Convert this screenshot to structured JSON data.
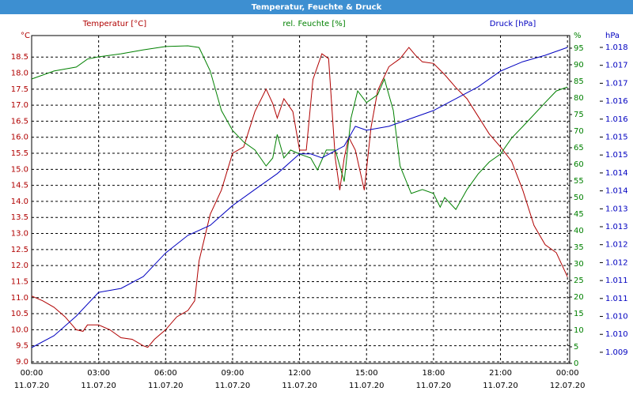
{
  "chart_data": {
    "type": "line",
    "title": "Temperatur, Feuchte & Druck",
    "y_unit": "°C",
    "y2_unit": "%",
    "y3_unit": "hPa",
    "xlim": [
      0,
      24.1
    ],
    "xticks": [
      {
        "value": 0,
        "label": "00:00"
      },
      {
        "value": 3,
        "label": "03:00"
      },
      {
        "value": 6,
        "label": "06:00"
      },
      {
        "value": 9,
        "label": "09:00"
      },
      {
        "value": 12,
        "label": "12:00"
      },
      {
        "value": 15,
        "label": "15:00"
      },
      {
        "value": 18,
        "label": "18:00"
      },
      {
        "value": 21,
        "label": "21:00"
      },
      {
        "value": 24,
        "label": "00:00"
      }
    ],
    "xtick_dates": [
      "11.07.20",
      "11.07.20",
      "11.07.20",
      "11.07.20",
      "11.07.20",
      "11.07.20",
      "11.07.20",
      "11.07.20",
      "12.07.20"
    ],
    "ylim": [
      8.95,
      19.17
    ],
    "yticks": [
      {
        "value": 9.0,
        "label": "9.0"
      },
      {
        "value": 9.5,
        "label": "9.5"
      },
      {
        "value": 10.0,
        "label": "10.0"
      },
      {
        "value": 10.5,
        "label": "10.5"
      },
      {
        "value": 11.0,
        "label": "11.0"
      },
      {
        "value": 11.5,
        "label": "11.5"
      },
      {
        "value": 12.0,
        "label": "12.0"
      },
      {
        "value": 12.5,
        "label": "12.5"
      },
      {
        "value": 13.0,
        "label": "13.0"
      },
      {
        "value": 13.5,
        "label": "13.5"
      },
      {
        "value": 14.0,
        "label": "14.0"
      },
      {
        "value": 14.5,
        "label": "14.5"
      },
      {
        "value": 15.0,
        "label": "15.0"
      },
      {
        "value": 15.5,
        "label": "15.5"
      },
      {
        "value": 16.0,
        "label": "16.0"
      },
      {
        "value": 16.5,
        "label": "16.5"
      },
      {
        "value": 17.0,
        "label": "17.0"
      },
      {
        "value": 17.5,
        "label": "17.5"
      },
      {
        "value": 18.0,
        "label": "18.0"
      },
      {
        "value": 18.5,
        "label": "18.5"
      }
    ],
    "y2lim": [
      0,
      98.8
    ],
    "y2ticks": [
      0,
      5,
      10,
      15,
      20,
      25,
      30,
      35,
      40,
      45,
      50,
      55,
      60,
      65,
      70,
      75,
      80,
      85,
      90,
      95
    ],
    "y3lim": [
      1.00919,
      1.01833
    ],
    "y3ticks": [
      {
        "value": 1.018,
        "label": "1.018"
      },
      {
        "value": 1.0175,
        "label": "1.017"
      },
      {
        "value": 1.017,
        "label": "1.017"
      },
      {
        "value": 1.0165,
        "label": "1.016"
      },
      {
        "value": 1.016,
        "label": "1.016"
      },
      {
        "value": 1.0155,
        "label": "1.015"
      },
      {
        "value": 1.015,
        "label": "1.015"
      },
      {
        "value": 1.0145,
        "label": "1.014"
      },
      {
        "value": 1.014,
        "label": "1.014"
      },
      {
        "value": 1.0135,
        "label": "1.013"
      },
      {
        "value": 1.013,
        "label": "1.013"
      },
      {
        "value": 1.0125,
        "label": "1.012"
      },
      {
        "value": 1.012,
        "label": "1.012"
      },
      {
        "value": 1.0115,
        "label": "1.011"
      },
      {
        "value": 1.011,
        "label": "1.011"
      },
      {
        "value": 1.0105,
        "label": "1.010"
      },
      {
        "value": 1.01,
        "label": "1.010"
      },
      {
        "value": 1.0095,
        "label": "1.009"
      }
    ],
    "grid": true,
    "series": [
      {
        "name": "Temperatur [°C]",
        "color": "#b00000",
        "axis": "y",
        "x": [
          0,
          0.5,
          1,
          1.5,
          2,
          2.3,
          2.5,
          3,
          3.5,
          4,
          4.5,
          5,
          5.2,
          5.5,
          6,
          6.5,
          7,
          7.3,
          7.5,
          8,
          8.5,
          9,
          9.5,
          10,
          10.5,
          10.8,
          11,
          11.3,
          11.7,
          12,
          12.3,
          12.6,
          13,
          13.3,
          13.6,
          13.8,
          14,
          14.2,
          14.5,
          14.9,
          15.2,
          15.5,
          16,
          16.5,
          16.9,
          17.2,
          17.5,
          18,
          18.5,
          19,
          19.5,
          20,
          20.5,
          21,
          21.5,
          22,
          22.5,
          23,
          23.5,
          24
        ],
        "values": [
          11.05,
          10.9,
          10.7,
          10.4,
          10.0,
          9.95,
          10.15,
          10.15,
          10.0,
          9.75,
          9.7,
          9.5,
          9.45,
          9.7,
          10.0,
          10.4,
          10.6,
          10.9,
          12.15,
          13.6,
          14.35,
          15.5,
          15.7,
          16.8,
          17.5,
          17.05,
          16.6,
          17.2,
          16.8,
          15.6,
          15.6,
          17.8,
          18.6,
          18.45,
          15.35,
          14.35,
          15.35,
          16.0,
          15.6,
          14.35,
          16.3,
          17.45,
          18.2,
          18.45,
          18.8,
          18.55,
          18.35,
          18.3,
          17.95,
          17.55,
          17.2,
          16.65,
          16.1,
          15.7,
          15.25,
          14.35,
          13.25,
          12.65,
          12.4,
          11.65
        ]
      },
      {
        "name": "rel. Feuchte [%]",
        "color": "#008000",
        "axis": "y2",
        "x": [
          0,
          1,
          2,
          2.5,
          3,
          4,
          5,
          6,
          7,
          7.5,
          8,
          8.5,
          9,
          9.5,
          10,
          10.5,
          10.8,
          11,
          11.3,
          11.6,
          12,
          12.5,
          12.8,
          13.2,
          13.6,
          14,
          14.3,
          14.6,
          15,
          15.5,
          15.8,
          16.2,
          16.5,
          17,
          17.5,
          18,
          18.3,
          18.5,
          19,
          19.5,
          20,
          20.5,
          21,
          21.5,
          22,
          22.5,
          23,
          23.5,
          24
        ],
        "values": [
          85.7,
          88.1,
          89.3,
          91.7,
          92.4,
          93.3,
          94.5,
          95.5,
          95.7,
          95.2,
          88.1,
          76.2,
          70.2,
          66.7,
          64.3,
          59.5,
          61.9,
          69,
          61.9,
          64.3,
          63.1,
          61.9,
          58.3,
          64.3,
          64.3,
          54.8,
          73.8,
          82.1,
          78.6,
          81,
          85.7,
          76.2,
          59.5,
          51.2,
          52.4,
          51.2,
          47.1,
          50,
          46.4,
          52.4,
          57.1,
          60.7,
          63.1,
          67.9,
          71.4,
          75,
          78.6,
          82.1,
          83.3
        ]
      },
      {
        "name": "Druck [hPa]",
        "color": "#0000c0",
        "axis": "y3",
        "x": [
          0,
          1,
          2,
          3,
          4,
          5,
          6,
          7,
          8,
          9,
          10,
          11,
          12,
          12.5,
          13,
          14,
          14.5,
          15,
          16,
          17,
          18,
          19,
          20,
          21,
          22,
          23,
          24
        ],
        "values": [
          1.00963,
          1.00996,
          1.01051,
          1.01117,
          1.01128,
          1.01161,
          1.01227,
          1.01276,
          1.01304,
          1.01359,
          1.01404,
          1.01448,
          1.01503,
          1.01503,
          1.01492,
          1.01525,
          1.0158,
          1.01569,
          1.0158,
          1.01602,
          1.01624,
          1.01657,
          1.0169,
          1.01734,
          1.0176,
          1.01778,
          1.018
        ]
      }
    ]
  }
}
